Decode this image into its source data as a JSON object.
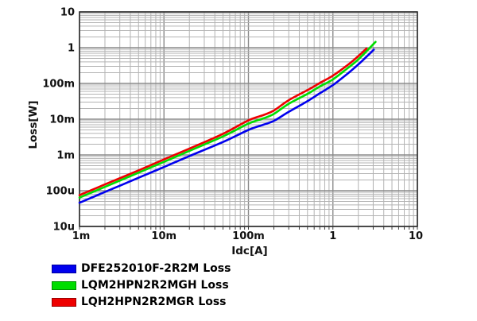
{
  "chart_data": {
    "type": "line",
    "title": "",
    "xlabel": "Idc[A]",
    "ylabel": "Loss[W]",
    "x_scale": "log",
    "y_scale": "log",
    "xlim": [
      0.001,
      10
    ],
    "ylim": [
      1e-05,
      10
    ],
    "grid": "log major+minor, boxed plot area",
    "legend_position": "bottom-left",
    "x_tick_labels": [
      "1m",
      "10m",
      "100m",
      "1",
      "10"
    ],
    "y_tick_labels": [
      "10",
      "1",
      "100m",
      "10m",
      "1m",
      "100u",
      "10u"
    ],
    "series": [
      {
        "name": "DFE252010F-2R2M Loss",
        "color": "#0000ee",
        "points": [
          [
            0.001,
            4.6e-05
          ],
          [
            0.002,
            9.2e-05
          ],
          [
            0.005,
            0.00023
          ],
          [
            0.01,
            0.00046
          ],
          [
            0.02,
            0.00093
          ],
          [
            0.05,
            0.0023
          ],
          [
            0.1,
            0.005
          ],
          [
            0.15,
            0.007
          ],
          [
            0.2,
            0.009
          ],
          [
            0.3,
            0.016
          ],
          [
            0.5,
            0.032
          ],
          [
            0.7,
            0.053
          ],
          [
            1.0,
            0.09
          ],
          [
            1.5,
            0.19
          ],
          [
            2.0,
            0.34
          ],
          [
            3.05,
            0.88
          ]
        ]
      },
      {
        "name": "LQM2HPN2R2MGH Loss",
        "color": "#00dd00",
        "points": [
          [
            0.001,
            6.4e-05
          ],
          [
            0.002,
            0.000128
          ],
          [
            0.005,
            0.00032
          ],
          [
            0.01,
            0.00064
          ],
          [
            0.02,
            0.0013
          ],
          [
            0.05,
            0.0033
          ],
          [
            0.1,
            0.0075
          ],
          [
            0.15,
            0.0105
          ],
          [
            0.2,
            0.014
          ],
          [
            0.3,
            0.027
          ],
          [
            0.5,
            0.051
          ],
          [
            0.7,
            0.082
          ],
          [
            1.0,
            0.13
          ],
          [
            1.5,
            0.27
          ],
          [
            2.0,
            0.47
          ],
          [
            3.2,
            1.45
          ]
        ]
      },
      {
        "name": "LQH2HPN2R2MGR Loss",
        "color": "#ee0000",
        "points": [
          [
            0.001,
            7.5e-05
          ],
          [
            0.002,
            0.00015
          ],
          [
            0.005,
            0.00037
          ],
          [
            0.01,
            0.00075
          ],
          [
            0.02,
            0.0015
          ],
          [
            0.05,
            0.0039
          ],
          [
            0.1,
            0.0093
          ],
          [
            0.15,
            0.013
          ],
          [
            0.2,
            0.0175
          ],
          [
            0.3,
            0.034
          ],
          [
            0.5,
            0.065
          ],
          [
            0.7,
            0.103
          ],
          [
            1.0,
            0.165
          ],
          [
            1.5,
            0.33
          ],
          [
            2.0,
            0.58
          ],
          [
            2.5,
            0.95
          ]
        ]
      }
    ]
  }
}
